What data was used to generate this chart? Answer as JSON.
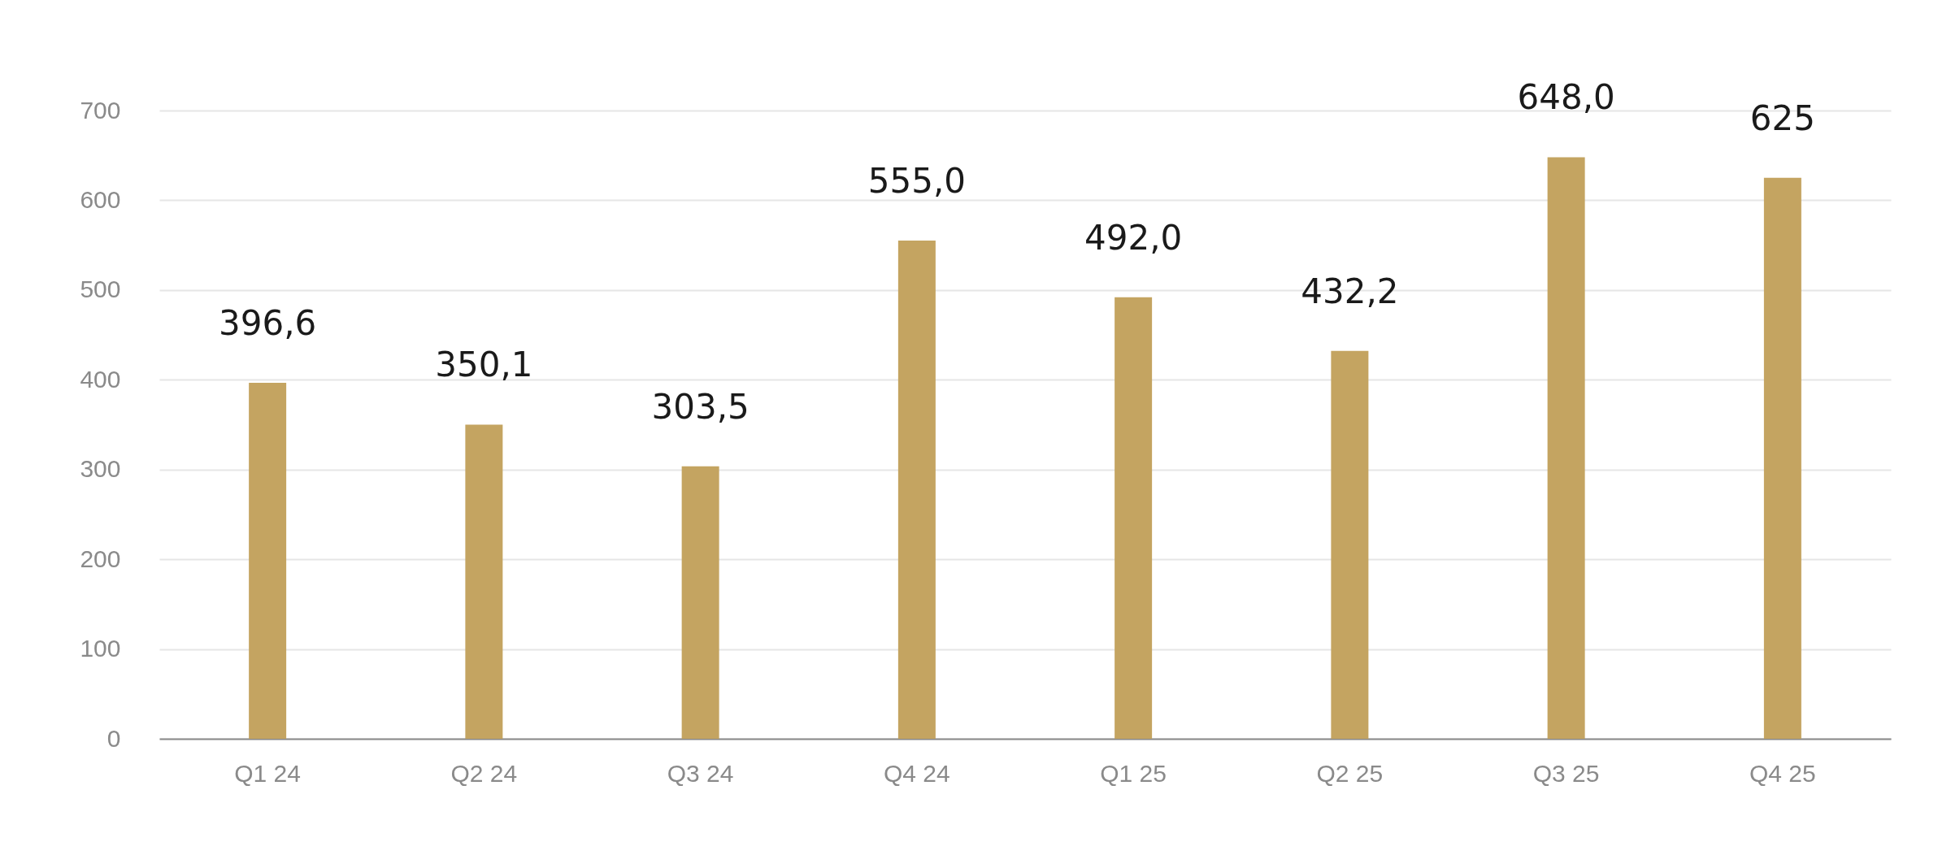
{
  "chart_data": {
    "type": "bar",
    "categories": [
      "Q1 24",
      "Q2 24",
      "Q3 24",
      "Q4 24",
      "Q1 25",
      "Q2 25",
      "Q3 25",
      "Q4 25"
    ],
    "values": [
      396.6,
      350.1,
      303.5,
      555.0,
      492.0,
      432.2,
      648.0,
      625
    ],
    "value_labels": [
      "396,6",
      "350,1",
      "303,5",
      "555,0",
      "492,0",
      "432,2",
      "648,0",
      "625"
    ],
    "color": "#c4a461",
    "ylim": [
      0,
      700
    ],
    "yticks": [
      0,
      100,
      200,
      300,
      400,
      500,
      600,
      700
    ],
    "grid": "y"
  }
}
